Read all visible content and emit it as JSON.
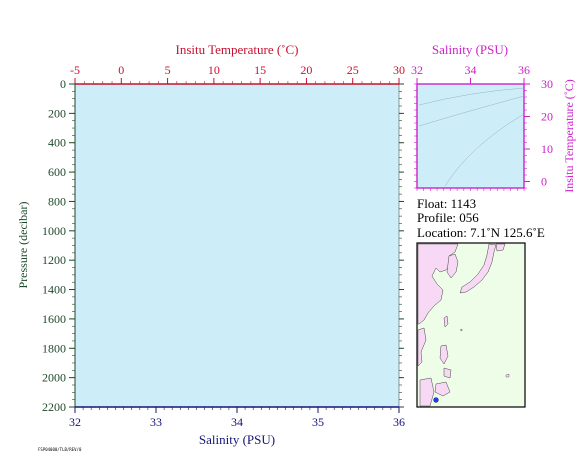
{
  "colors": {
    "temperature": "#c8102e",
    "salinity": "#14147a",
    "salinity_inset": "#cc22cc",
    "pressure": "#1f4a2a",
    "plot_bg": "#cdeef8",
    "land": "#f7d9f5",
    "sea": "#eefde8"
  },
  "chart_data": [
    {
      "type": "line",
      "name": "profile",
      "top_axis": {
        "label": "Insitu Temperature (˚C)",
        "range": [
          -5,
          30
        ],
        "ticks": [
          "-5",
          "0",
          "5",
          "10",
          "15",
          "20",
          "25",
          "30"
        ]
      },
      "bottom_axis": {
        "label": "Salinity (PSU)",
        "range": [
          32,
          36
        ],
        "ticks": [
          "32",
          "33",
          "34",
          "35",
          "36"
        ]
      },
      "left_axis": {
        "label": "Pressure (decibar)",
        "range": [
          0,
          2200
        ],
        "inverted": true,
        "ticks": [
          "0",
          "200",
          "400",
          "600",
          "800",
          "1000",
          "1200",
          "1400",
          "1600",
          "1800",
          "2000",
          "2200"
        ]
      },
      "series": []
    },
    {
      "type": "scatter",
      "name": "ts-diagram",
      "top_axis": {
        "label": "Salinity (PSU)",
        "range": [
          32,
          36
        ],
        "ticks": [
          "32",
          "34",
          "36"
        ]
      },
      "right_axis": {
        "label": "Insitu Temperature (˚C)",
        "range": [
          -2,
          30
        ],
        "ticks": [
          "30",
          "20",
          "10",
          "0"
        ]
      },
      "series": []
    }
  ],
  "info": {
    "float": "Float:  1143",
    "profile": "Profile:  056",
    "location": "Location:  7.1˚N  125.6˚E"
  },
  "map": {
    "marker_lat": 7.1,
    "marker_lon": 125.6
  },
  "footer_stamp": "FSP04000/TLB/REV/0"
}
